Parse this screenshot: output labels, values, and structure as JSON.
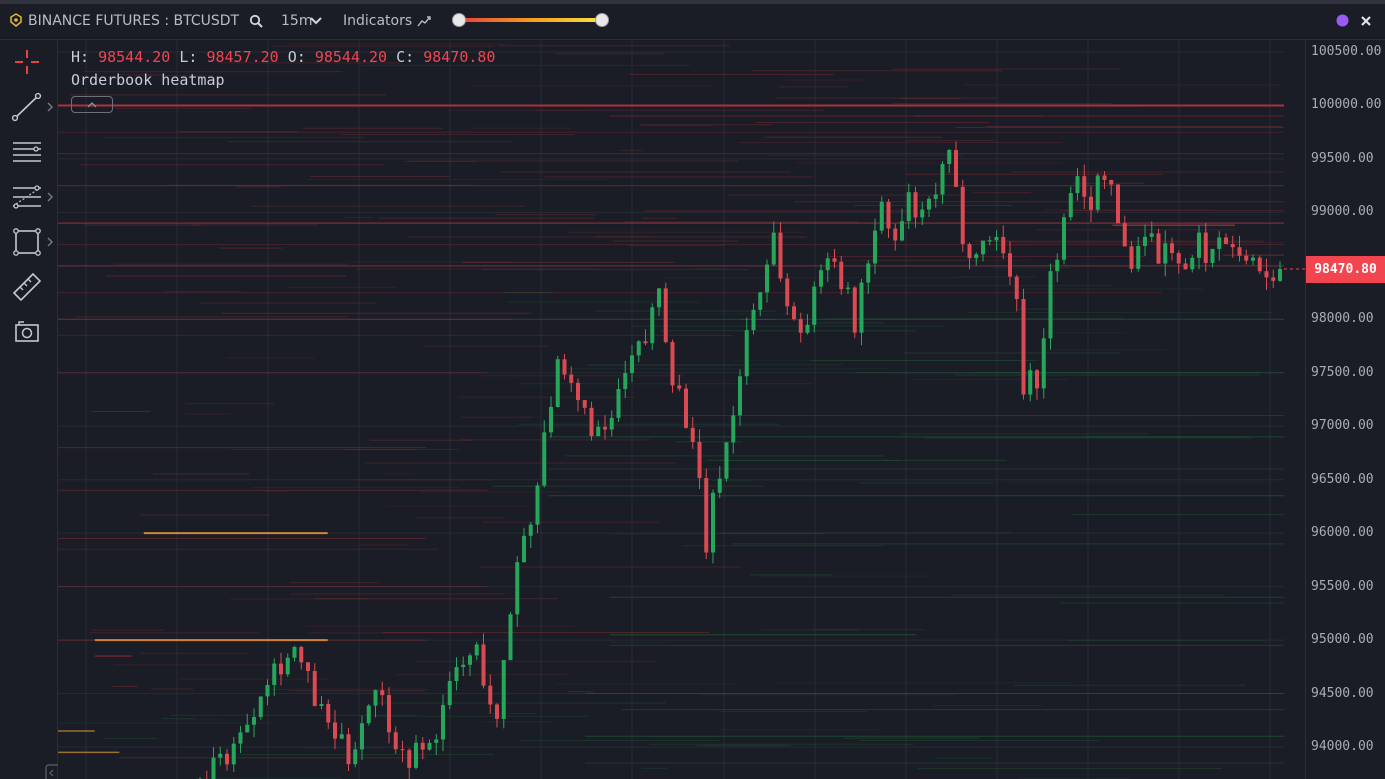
{
  "toolbar": {
    "exchange_label": "BINANCE FUTURES : BTCUSDT",
    "timeframe": "15m",
    "indicators_label": "Indicators",
    "slider_min": 0,
    "slider_max": 1,
    "status_color": "#9b59f5"
  },
  "sidebar": {
    "tools": [
      "crosshair-icon",
      "trendline-icon",
      "horizontal-lines-icon",
      "fib-levels-icon",
      "rectangle-icon",
      "ruler-icon",
      "camera-icon"
    ]
  },
  "legend": {
    "h_label": "H:",
    "h_value": "98544.20",
    "l_label": "L:",
    "l_value": "98457.20",
    "o_label": "O:",
    "o_value": "98544.20",
    "c_label": "C:",
    "c_value": "98470.80",
    "study": "Orderbook heatmap"
  },
  "price_tag": "98470.80",
  "chart_data": {
    "type": "candlestick",
    "title": "",
    "ylim": [
      93700,
      100700
    ],
    "yticks": [
      "100500.00",
      "100000.00",
      "99500.00",
      "99000.00",
      "98500.00",
      "98000.00",
      "97500.00",
      "97000.00",
      "96500.00",
      "96000.00",
      "95500.00",
      "95000.00",
      "94500.00",
      "94000.00"
    ],
    "last_price": 98470.8,
    "colors": {
      "up": "#26a65b",
      "down": "#d94a52",
      "bid": "#1f7a3c",
      "ask": "#b8343c",
      "strong": "#f0a63a"
    },
    "anchors": [
      [
        0,
        93650
      ],
      [
        6,
        94100
      ],
      [
        10,
        94700
      ],
      [
        14,
        94900
      ],
      [
        18,
        94300
      ],
      [
        22,
        93900
      ],
      [
        26,
        94600
      ],
      [
        30,
        93900
      ],
      [
        34,
        94000
      ],
      [
        38,
        94700
      ],
      [
        41,
        94900
      ],
      [
        44,
        94200
      ],
      [
        47,
        95800
      ],
      [
        49,
        96100
      ],
      [
        51,
        97000
      ],
      [
        53,
        97500
      ],
      [
        56,
        97200
      ],
      [
        60,
        96850
      ],
      [
        62,
        97300
      ],
      [
        64,
        97600
      ],
      [
        66,
        97800
      ],
      [
        68,
        98300
      ],
      [
        70,
        97500
      ],
      [
        72,
        97100
      ],
      [
        74,
        96400
      ],
      [
        75,
        95900
      ],
      [
        77,
        96600
      ],
      [
        79,
        97100
      ],
      [
        81,
        97900
      ],
      [
        83,
        98300
      ],
      [
        85,
        98800
      ],
      [
        87,
        98100
      ],
      [
        89,
        97900
      ],
      [
        91,
        98200
      ],
      [
        93,
        98700
      ],
      [
        95,
        98400
      ],
      [
        97,
        97950
      ],
      [
        99,
        98600
      ],
      [
        101,
        99000
      ],
      [
        103,
        98700
      ],
      [
        105,
        99100
      ],
      [
        107,
        98900
      ],
      [
        109,
        99200
      ],
      [
        111,
        99500
      ],
      [
        113,
        98800
      ],
      [
        115,
        98600
      ],
      [
        117,
        98800
      ],
      [
        119,
        98700
      ],
      [
        121,
        98100
      ],
      [
        122,
        97400
      ],
      [
        123,
        97600
      ],
      [
        124,
        97300
      ],
      [
        126,
        98400
      ],
      [
        128,
        98900
      ],
      [
        130,
        99300
      ],
      [
        132,
        99100
      ],
      [
        134,
        99400
      ],
      [
        136,
        98900
      ],
      [
        138,
        98500
      ],
      [
        140,
        98900
      ],
      [
        142,
        98600
      ],
      [
        144,
        98700
      ],
      [
        146,
        98400
      ],
      [
        148,
        98700
      ],
      [
        150,
        98600
      ],
      [
        152,
        98800
      ],
      [
        154,
        98700
      ],
      [
        156,
        98500
      ],
      [
        158,
        98450
      ],
      [
        160,
        98470
      ]
    ],
    "heat_rows": [
      [
        100000,
        0,
        1,
        "ask",
        0.9,
        2
      ],
      [
        99900,
        0.45,
        1,
        "ask",
        0.35,
        1
      ],
      [
        99750,
        0,
        1,
        "ask",
        0.25,
        1
      ],
      [
        99550,
        0,
        1,
        "ask",
        0.3,
        1
      ],
      [
        99250,
        0,
        1,
        "ask",
        0.45,
        1
      ],
      [
        99100,
        0.6,
        1,
        "ask",
        0.3,
        1
      ],
      [
        98900,
        0,
        1,
        "ask",
        0.55,
        1.5
      ],
      [
        98880,
        0.86,
        0.96,
        "ask",
        0.7,
        1.5
      ],
      [
        98700,
        0,
        1,
        "ask",
        0.25,
        1
      ],
      [
        98600,
        0.95,
        1,
        "ask",
        0.5,
        1
      ],
      [
        98500,
        0,
        1,
        "ask",
        0.55,
        1
      ],
      [
        98250,
        0,
        0.9,
        "ask",
        0.25,
        1
      ],
      [
        98000,
        0,
        0.37,
        "ask",
        0.5,
        1
      ],
      [
        98000,
        0.37,
        1,
        "bid",
        0.35,
        1
      ],
      [
        97850,
        0,
        0.55,
        "ask",
        0.25,
        1
      ],
      [
        97500,
        0,
        0.35,
        "ask",
        0.3,
        1
      ],
      [
        97500,
        0.65,
        1,
        "bid",
        0.35,
        1
      ],
      [
        97100,
        0.4,
        1,
        "bid",
        0.3,
        1
      ],
      [
        96900,
        0.4,
        1,
        "bid",
        0.45,
        1
      ],
      [
        96800,
        0,
        0.3,
        "ask",
        0.35,
        1
      ],
      [
        96600,
        0.4,
        1,
        "bid",
        0.3,
        1
      ],
      [
        96400,
        0,
        0.35,
        "ask",
        0.3,
        1
      ],
      [
        96350,
        0.4,
        1,
        "bid",
        0.45,
        1
      ],
      [
        96000,
        0.07,
        0.22,
        "strong",
        0.8,
        2
      ],
      [
        95950,
        0,
        0.3,
        "ask",
        0.35,
        1
      ],
      [
        95900,
        0.55,
        1,
        "bid",
        0.35,
        1
      ],
      [
        95850,
        0,
        0.31,
        "ask",
        0.25,
        1
      ],
      [
        95500,
        0,
        0.35,
        "ask",
        0.3,
        1
      ],
      [
        95400,
        0.45,
        1,
        "bid",
        0.4,
        1
      ],
      [
        95050,
        0.45,
        0.7,
        "bid",
        0.5,
        1
      ],
      [
        95000,
        0.03,
        0.22,
        "strong",
        0.9,
        2
      ],
      [
        95000,
        0,
        0.3,
        "ask",
        0.4,
        1
      ],
      [
        94950,
        0.45,
        1,
        "bid",
        0.35,
        1
      ],
      [
        94850,
        0.03,
        0.06,
        "ask",
        0.5,
        1.5
      ],
      [
        94500,
        0.43,
        1,
        "bid",
        0.4,
        1
      ],
      [
        94350,
        0.46,
        1,
        "bid",
        0.35,
        1
      ],
      [
        94150,
        0,
        0.03,
        "strong",
        0.6,
        1.5
      ],
      [
        94100,
        0.43,
        1,
        "bid",
        0.45,
        1
      ],
      [
        93950,
        0,
        0.05,
        "strong",
        0.6,
        1.5
      ],
      [
        93900,
        0.05,
        0.3,
        "ask",
        0.3,
        1
      ],
      [
        93850,
        0.43,
        1,
        "bid",
        0.3,
        1
      ]
    ]
  }
}
